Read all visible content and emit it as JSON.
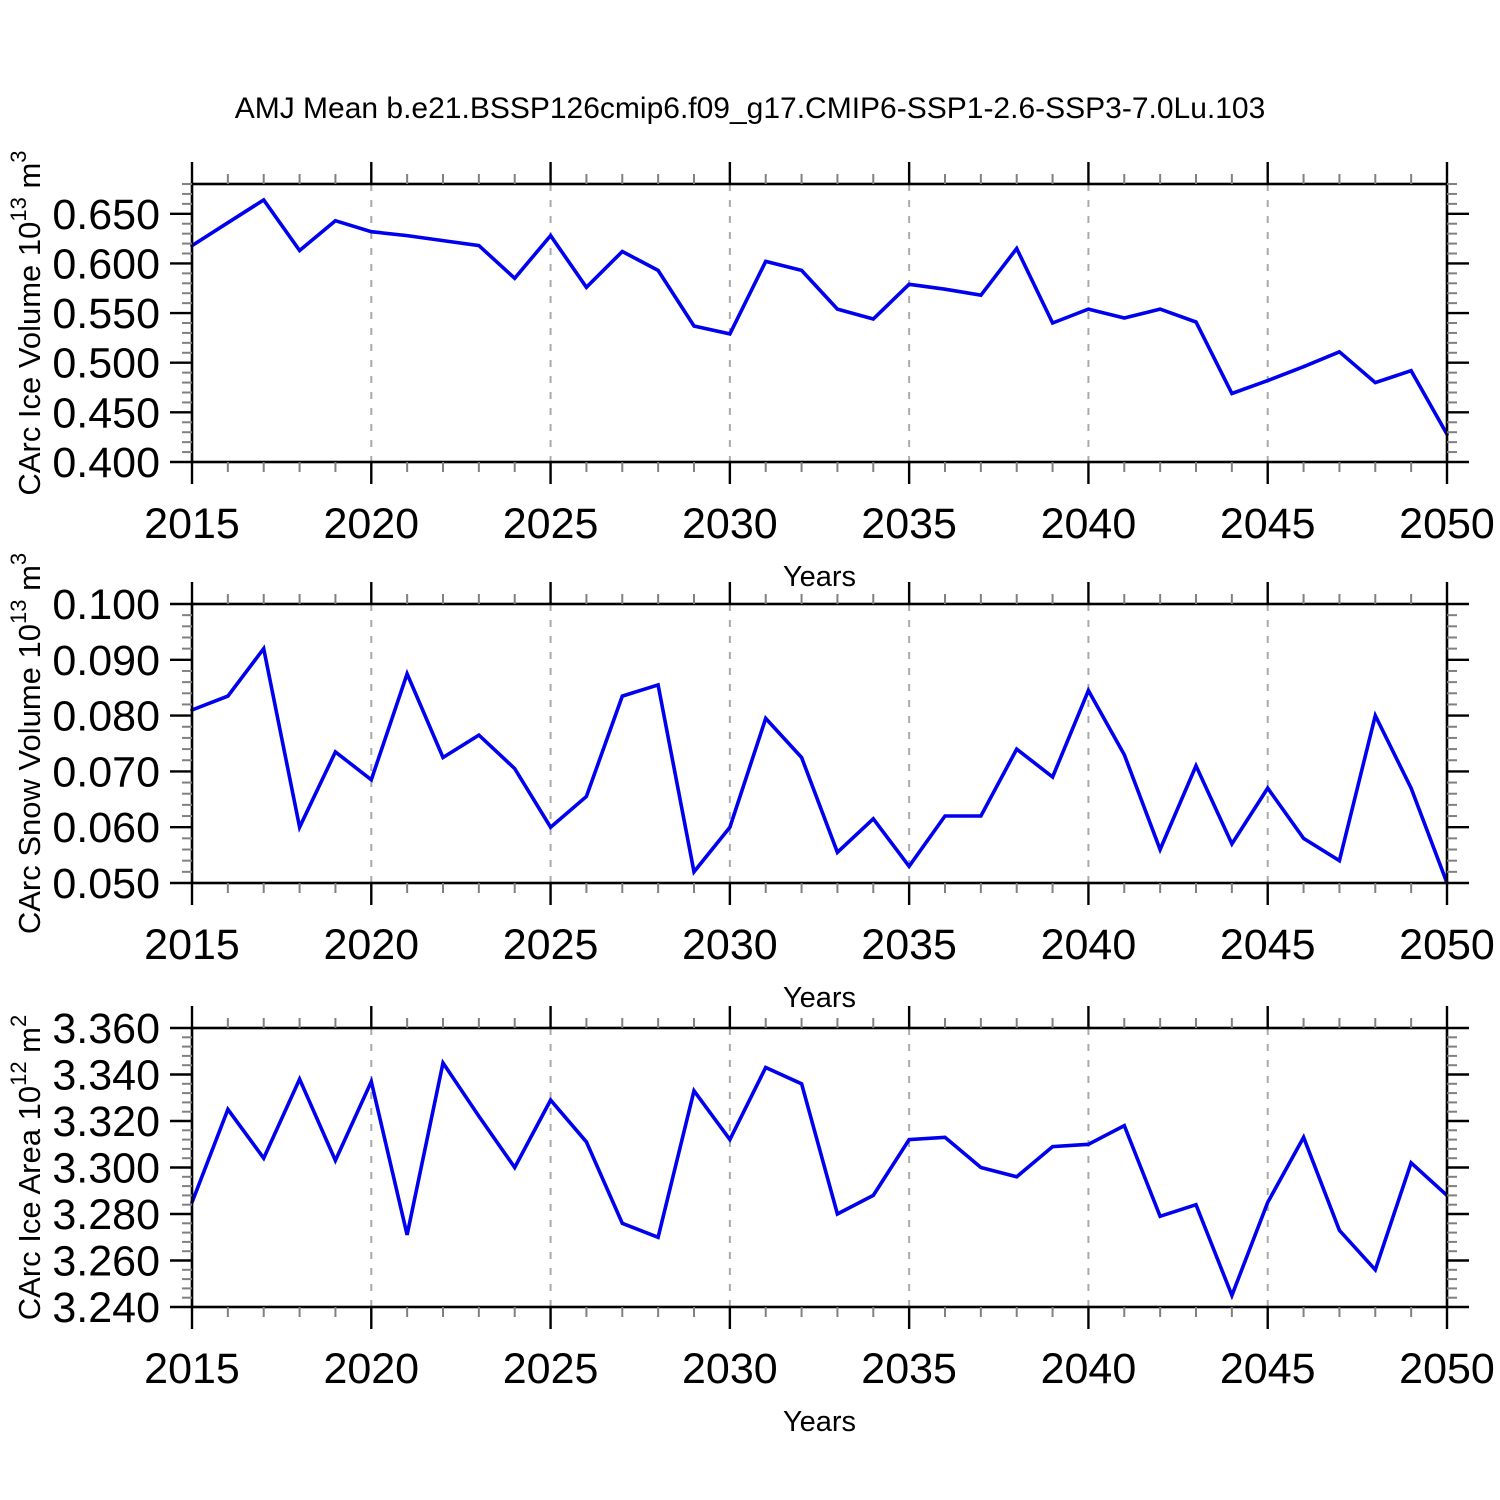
{
  "title": "AMJ Mean b.e21.BSSP126cmip6.f09_g17.CMIP6-SSP1-2.6-SSP3-7.0Lu.103",
  "colors": {
    "line": "#0000EE",
    "grid": "#AAAAAA",
    "axis": "#000000",
    "minor_tick": "#808080",
    "background": "#FFFFFF"
  },
  "years": [
    2015,
    2016,
    2017,
    2018,
    2019,
    2020,
    2021,
    2022,
    2023,
    2024,
    2025,
    2026,
    2027,
    2028,
    2029,
    2030,
    2031,
    2032,
    2033,
    2034,
    2035,
    2036,
    2037,
    2038,
    2039,
    2040,
    2041,
    2042,
    2043,
    2044,
    2045,
    2046,
    2047,
    2048,
    2049,
    2050
  ],
  "xticks": [
    "2015",
    "2020",
    "2025",
    "2030",
    "2035",
    "2040",
    "2045",
    "2050"
  ],
  "grid_x": [
    2020,
    2025,
    2030,
    2035,
    2040,
    2045
  ],
  "chart_data": [
    {
      "type": "line",
      "name": "ice-volume",
      "title": "",
      "ylabel": "CArc Ice Volume 10¹³ m³",
      "ylabel_parts": [
        {
          "t": "CArc Ice Volume 10"
        },
        {
          "t": "13",
          "sup": true
        },
        {
          "t": " m"
        },
        {
          "t": "3",
          "sup": true
        }
      ],
      "xlabel": "Years",
      "xlim": [
        2015,
        2050
      ],
      "ylim": [
        0.4,
        0.68
      ],
      "yticks": [
        "0.400",
        "0.450",
        "0.500",
        "0.550",
        "0.600",
        "0.650"
      ],
      "ytick_minor": 0.01,
      "values": [
        0.618,
        0.641,
        0.664,
        0.613,
        0.643,
        0.632,
        0.628,
        0.623,
        0.618,
        0.585,
        0.628,
        0.576,
        0.612,
        0.593,
        0.537,
        0.529,
        0.602,
        0.593,
        0.554,
        0.544,
        0.579,
        0.574,
        0.568,
        0.615,
        0.54,
        0.554,
        0.545,
        0.554,
        0.541,
        0.469,
        0.482,
        0.496,
        0.511,
        0.48,
        0.492,
        0.428
      ]
    },
    {
      "type": "line",
      "name": "snow-volume",
      "title": "",
      "ylabel": "CArc Snow Volume 10¹³ m³",
      "ylabel_parts": [
        {
          "t": "CArc Snow Volume 10"
        },
        {
          "t": "13",
          "sup": true
        },
        {
          "t": " m"
        },
        {
          "t": "3",
          "sup": true
        }
      ],
      "xlabel": "Years",
      "xlim": [
        2015,
        2050
      ],
      "ylim": [
        0.05,
        0.1
      ],
      "yticks": [
        "0.050",
        "0.060",
        "0.070",
        "0.080",
        "0.090",
        "0.100"
      ],
      "ytick_minor": 0.002,
      "values": [
        0.081,
        0.0835,
        0.092,
        0.06,
        0.0735,
        0.0685,
        0.0875,
        0.0725,
        0.0765,
        0.0705,
        0.06,
        0.0655,
        0.0835,
        0.0855,
        0.052,
        0.06,
        0.0795,
        0.0725,
        0.0555,
        0.0615,
        0.053,
        0.062,
        0.062,
        0.074,
        0.069,
        0.0845,
        0.073,
        0.056,
        0.071,
        0.057,
        0.067,
        0.058,
        0.054,
        0.08,
        0.067,
        0.05
      ]
    },
    {
      "type": "line",
      "name": "ice-area",
      "title": "",
      "ylabel": "CArc Ice Area 10¹² m²",
      "ylabel_parts": [
        {
          "t": "CArc Ice Area 10"
        },
        {
          "t": "12",
          "sup": true
        },
        {
          "t": " m"
        },
        {
          "t": "2",
          "sup": true
        }
      ],
      "xlabel": "Years",
      "xlim": [
        2015,
        2050
      ],
      "ylim": [
        3.24,
        3.36
      ],
      "yticks": [
        "3.240",
        "3.260",
        "3.280",
        "3.300",
        "3.320",
        "3.340",
        "3.360"
      ],
      "ytick_minor": 0.004,
      "values": [
        3.285,
        3.325,
        3.304,
        3.338,
        3.303,
        3.337,
        3.271,
        3.345,
        3.322,
        3.3,
        3.329,
        3.311,
        3.276,
        3.27,
        3.333,
        3.312,
        3.343,
        3.336,
        3.28,
        3.288,
        3.312,
        3.313,
        3.3,
        3.296,
        3.309,
        3.31,
        3.318,
        3.279,
        3.284,
        3.245,
        3.285,
        3.313,
        3.273,
        3.256,
        3.302,
        3.288
      ]
    }
  ]
}
